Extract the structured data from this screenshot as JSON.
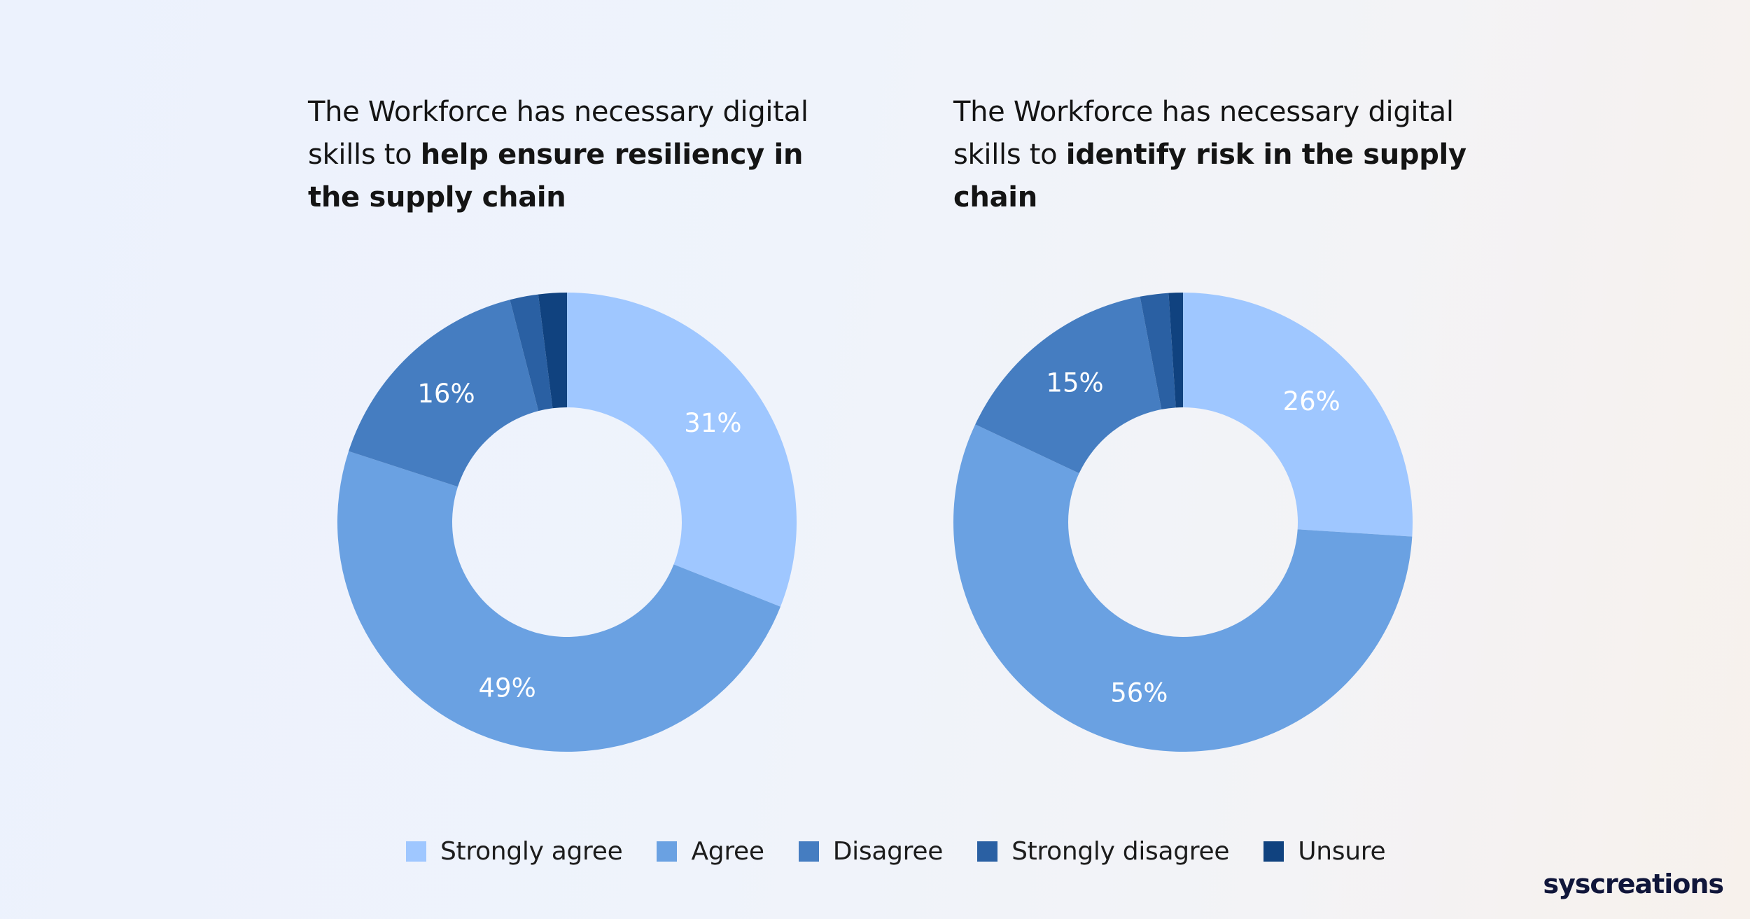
{
  "chart_data": [
    {
      "type": "pie",
      "title": {
        "normal": "The Workforce has necessary digital skills to",
        "bold": "help ensure resiliency in the supply chain"
      },
      "categories": [
        "Strongly agree",
        "Agree",
        "Disagree",
        "Strongly disagree",
        "Unsure"
      ],
      "values": [
        31,
        49,
        16,
        2,
        2
      ],
      "labels": [
        "31%",
        "49%",
        "16%",
        "",
        ""
      ]
    },
    {
      "type": "pie",
      "title": {
        "normal": "The Workforce has necessary digital skills to",
        "bold": "identify risk in the supply chain"
      },
      "categories": [
        "Strongly agree",
        "Agree",
        "Disagree",
        "Strongly disagree",
        "Unsure"
      ],
      "values": [
        26,
        56,
        15,
        2,
        1
      ],
      "labels": [
        "26%",
        "56%",
        "15%",
        "",
        ""
      ]
    }
  ],
  "legend": [
    {
      "label": "Strongly agree",
      "color": "#9fc7ff"
    },
    {
      "label": "Agree",
      "color": "#6aa1e2"
    },
    {
      "label": "Disagree",
      "color": "#457dc1"
    },
    {
      "label": "Strongly disagree",
      "color": "#2a60a3"
    },
    {
      "label": "Unsure",
      "color": "#10427f"
    }
  ],
  "brand": "syscreations"
}
